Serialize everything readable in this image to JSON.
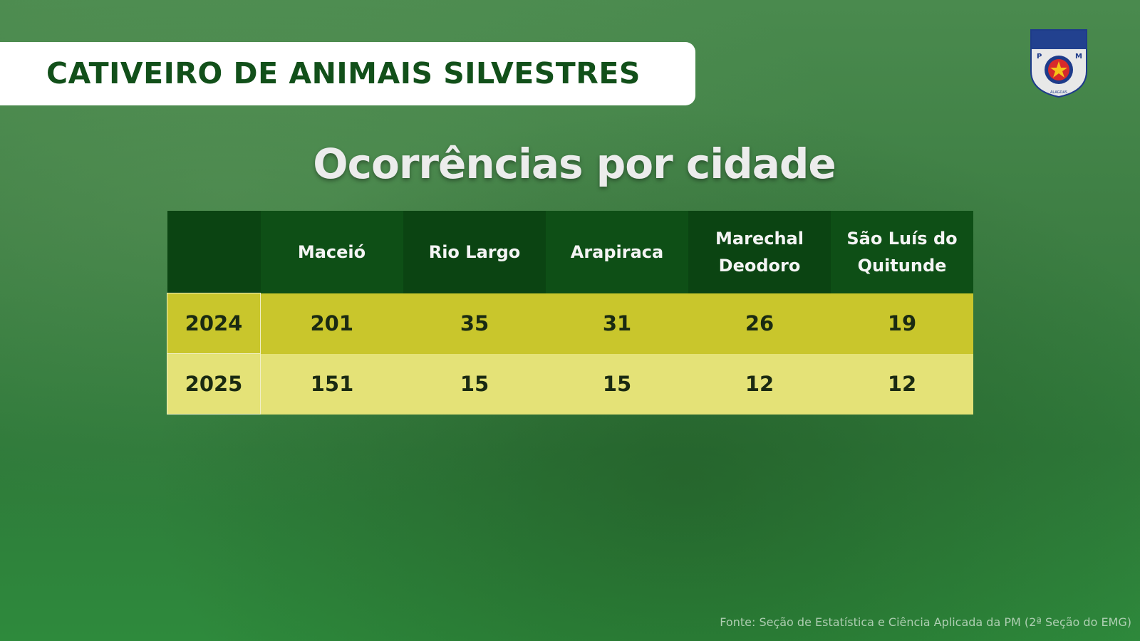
{
  "header": {
    "title": "CATIVEIRO DE ANIMAIS SILVESTRES"
  },
  "subtitle": "Ocorrências por cidade",
  "table": {
    "columns": [
      "Maceió",
      "Rio Largo",
      "Arapiraca",
      "Marechal Deodoro",
      "São Luís do Quitunde"
    ],
    "rows": [
      {
        "label": "2024",
        "values": [
          201,
          35,
          31,
          26,
          19
        ]
      },
      {
        "label": "2025",
        "values": [
          151,
          15,
          15,
          12,
          12
        ]
      }
    ]
  },
  "logo": {
    "left": "P",
    "right": "M",
    "caption": "ALAGOAS"
  },
  "footer": {
    "source": "Fonte: Seção de Estatística e Ciência Aplicada da PM (2ª Seção do EMG)"
  }
}
